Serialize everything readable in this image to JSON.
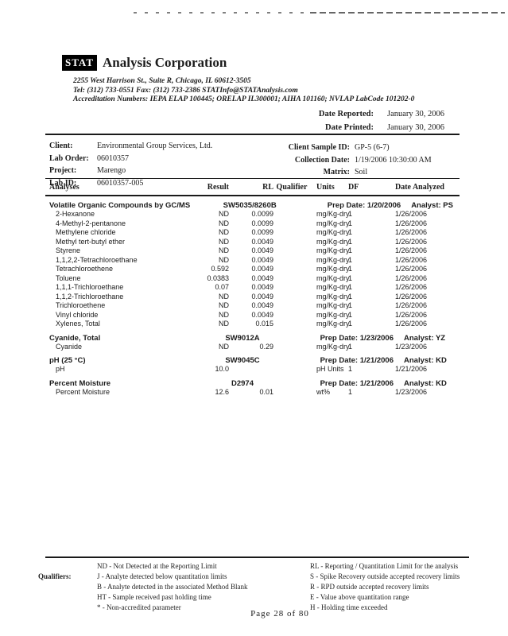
{
  "header": {
    "logo_text": "STAT",
    "company_name": "Analysis Corporation",
    "address": "2255 West Harrison St., Suite R, Chicago, IL 60612-3505",
    "contact": "Tel: (312) 733-0551  Fax: (312) 733-2386  STATInfo@STATAnalysis.com",
    "accreditation": "Accreditation Numbers: IEPA ELAP 100445; ORELAP IL300001; AIHA 101160; NVLAP LabCode 101202-0",
    "date_reported_label": "Date Reported:",
    "date_reported": "January 30, 2006",
    "date_printed_label": "Date Printed:",
    "date_printed": "January 30, 2006"
  },
  "client_info": {
    "client_label": "Client:",
    "client": "Environmental Group Services, Ltd.",
    "lab_order_label": "Lab Order:",
    "lab_order": "06010357",
    "project_label": "Project:",
    "project": "Marengo",
    "lab_id_label": "Lab ID:",
    "lab_id": "06010357-005",
    "sample_id_label": "Client Sample ID:",
    "sample_id": "GP-5 (6-7)",
    "collection_date_label": "Collection Date:",
    "collection_date": "1/19/2006 10:30:00 AM",
    "matrix_label": "Matrix:",
    "matrix": "Soil"
  },
  "results_table": {
    "headers": [
      "Analyses",
      "Result",
      "RL",
      "Qualifier",
      "Units",
      "DF",
      "Date Analyzed"
    ],
    "sections": [
      {
        "name": "Volatile Organic Compounds by GC/MS",
        "method": "SW5035/8260B",
        "prep_date": "Prep Date: 1/20/2006",
        "analyst": "Analyst:  PS",
        "rows": [
          {
            "analyte": "2-Hexanone",
            "result": "ND",
            "rl": "0.0099",
            "qualifier": "",
            "units": "mg/Kg-dry",
            "df": "1",
            "date_analyzed": "1/26/2006"
          },
          {
            "analyte": "4-Methyl-2-pentanone",
            "result": "ND",
            "rl": "0.0099",
            "qualifier": "",
            "units": "mg/Kg-dry",
            "df": "1",
            "date_analyzed": "1/26/2006"
          },
          {
            "analyte": "Methylene chloride",
            "result": "ND",
            "rl": "0.0099",
            "qualifier": "",
            "units": "mg/Kg-dry",
            "df": "1",
            "date_analyzed": "1/26/2006"
          },
          {
            "analyte": "Methyl tert-butyl ether",
            "result": "ND",
            "rl": "0.0049",
            "qualifier": "",
            "units": "mg/Kg-dry",
            "df": "1",
            "date_analyzed": "1/26/2006"
          },
          {
            "analyte": "Styrene",
            "result": "ND",
            "rl": "0.0049",
            "qualifier": "",
            "units": "mg/Kg-dry",
            "df": "1",
            "date_analyzed": "1/26/2006"
          },
          {
            "analyte": "1,1,2,2-Tetrachloroethane",
            "result": "ND",
            "rl": "0.0049",
            "qualifier": "",
            "units": "mg/Kg-dry",
            "df": "1",
            "date_analyzed": "1/26/2006"
          },
          {
            "analyte": "Tetrachloroethene",
            "result": "0.592",
            "rl": "0.0049",
            "qualifier": "",
            "units": "mg/Kg-dry",
            "df": "1",
            "date_analyzed": "1/26/2006"
          },
          {
            "analyte": "Toluene",
            "result": "0.0383",
            "rl": "0.0049",
            "qualifier": "",
            "units": "mg/Kg-dry",
            "df": "1",
            "date_analyzed": "1/26/2006"
          },
          {
            "analyte": "1,1,1-Trichloroethane",
            "result": "0.07",
            "rl": "0.0049",
            "qualifier": "",
            "units": "mg/Kg-dry",
            "df": "1",
            "date_analyzed": "1/26/2006"
          },
          {
            "analyte": "1,1,2-Trichloroethane",
            "result": "ND",
            "rl": "0.0049",
            "qualifier": "",
            "units": "mg/Kg-dry",
            "df": "1",
            "date_analyzed": "1/26/2006"
          },
          {
            "analyte": "Trichloroethene",
            "result": "ND",
            "rl": "0.0049",
            "qualifier": "",
            "units": "mg/Kg-dry",
            "df": "1",
            "date_analyzed": "1/26/2006"
          },
          {
            "analyte": "Vinyl chloride",
            "result": "ND",
            "rl": "0.0049",
            "qualifier": "",
            "units": "mg/Kg-dry",
            "df": "1",
            "date_analyzed": "1/26/2006"
          },
          {
            "analyte": "Xylenes, Total",
            "result": "ND",
            "rl": "0.015",
            "qualifier": "",
            "units": "mg/Kg-dry",
            "df": "1",
            "date_analyzed": "1/26/2006"
          }
        ]
      },
      {
        "name": "Cyanide, Total",
        "method": "SW9012A",
        "prep_date": "Prep Date: 1/23/2006",
        "analyst": "Analyst: YZ",
        "rows": [
          {
            "analyte": "Cyanide",
            "result": "ND",
            "rl": "0.29",
            "qualifier": "",
            "units": "mg/Kg-dry",
            "df": "1",
            "date_analyzed": "1/23/2006"
          }
        ]
      },
      {
        "name": "pH (25 °C)",
        "method": "SW9045C",
        "prep_date": "Prep Date: 1/21/2006",
        "analyst": "Analyst: KD",
        "rows": [
          {
            "analyte": "pH",
            "result": "10.0",
            "rl": "",
            "qualifier": "",
            "units": "pH Units",
            "df": "1",
            "date_analyzed": "1/21/2006"
          }
        ]
      },
      {
        "name": "Percent Moisture",
        "method": "D2974",
        "prep_date": "Prep Date: 1/21/2006",
        "analyst": "Analyst: KD",
        "rows": [
          {
            "analyte": "Percent Moisture",
            "result": "12.6",
            "rl": "0.01",
            "qualifier": "",
            "units": "wt%",
            "df": "1",
            "date_analyzed": "1/23/2006"
          }
        ]
      }
    ]
  },
  "footer": {
    "qualifiers_label": "Qualifiers:",
    "left_items": [
      "ND - Not Detected at the Reporting Limit",
      "J - Analyte detected below quantitation limits",
      "B - Analyte detected in the associated Method Blank",
      "HT - Sample received past holding time",
      "* - Non-accredited parameter"
    ],
    "right_items": [
      "RL - Reporting / Quantitation Limit for the analysis",
      "S - Spike Recovery outside accepted recovery limits",
      "R - RPD outside accepted recovery limits",
      "E - Value above quantitation range",
      "H - Holding time exceeded"
    ],
    "page_text": "Page 28 of 80"
  }
}
